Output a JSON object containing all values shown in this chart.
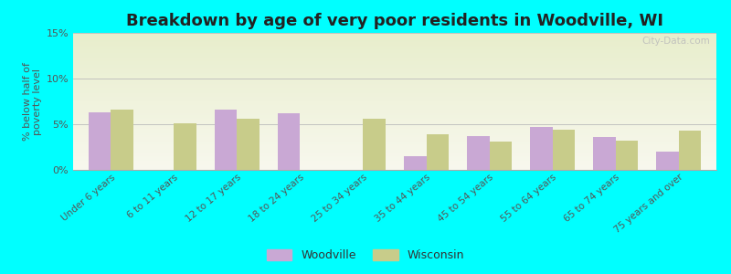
{
  "title": "Breakdown by age of very poor residents in Woodville, WI",
  "categories": [
    "Under 6 years",
    "6 to 11 years",
    "12 to 17 years",
    "18 to 24 years",
    "25 to 34 years",
    "35 to 44 years",
    "45 to 54 years",
    "55 to 64 years",
    "65 to 74 years",
    "75 years and over"
  ],
  "woodville": [
    6.3,
    0,
    6.6,
    6.2,
    0,
    1.5,
    3.7,
    4.7,
    3.6,
    2.0
  ],
  "wisconsin": [
    6.6,
    5.1,
    5.6,
    0,
    5.6,
    3.9,
    3.1,
    4.4,
    3.2,
    4.3
  ],
  "woodville_color": "#c9a8d4",
  "wisconsin_color": "#c8cc8a",
  "background_color": "#00ffff",
  "plot_bg": "#f0f2dc",
  "ylabel": "% below half of\npoverty level",
  "ylim": [
    0,
    15
  ],
  "yticks": [
    0,
    5,
    10,
    15
  ],
  "yticklabels": [
    "0%",
    "5%",
    "10%",
    "15%"
  ],
  "title_fontsize": 13,
  "watermark": "City-Data.com",
  "bar_width": 0.35
}
